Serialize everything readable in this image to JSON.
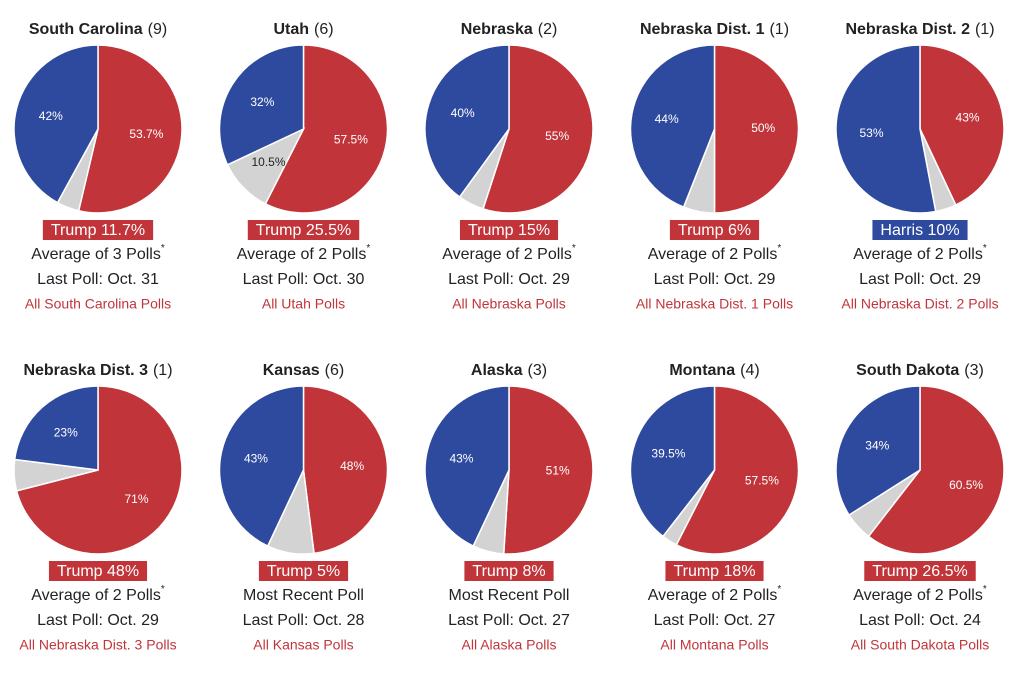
{
  "chart_data": [
    {
      "type": "pie",
      "title": "South Carolina",
      "electoral": "(9)",
      "values": [
        53.7,
        4.3,
        42
      ],
      "value_labels": [
        "53.7%",
        null,
        "42%"
      ],
      "colors": [
        "#c1353a",
        "#d3d3d3",
        "#2e4a9e"
      ],
      "margin": "Trump 11.7%",
      "margin_color": "#c1353a",
      "poll_note": "Average of 3 Polls",
      "footnote_mark": "*",
      "last_poll": "Last Poll: Oct. 31",
      "link": "All South Carolina Polls"
    },
    {
      "type": "pie",
      "title": "Utah",
      "electoral": "(6)",
      "values": [
        57.5,
        10.5,
        32
      ],
      "value_labels": [
        "57.5%",
        "10.5%",
        "32%"
      ],
      "colors": [
        "#c1353a",
        "#d3d3d3",
        "#2e4a9e"
      ],
      "margin": "Trump 25.5%",
      "margin_color": "#c1353a",
      "poll_note": "Average of 2 Polls",
      "footnote_mark": "*",
      "last_poll": "Last Poll: Oct. 30",
      "link": "All Utah Polls"
    },
    {
      "type": "pie",
      "title": "Nebraska",
      "electoral": "(2)",
      "values": [
        55,
        5,
        40
      ],
      "value_labels": [
        "55%",
        null,
        "40%"
      ],
      "colors": [
        "#c1353a",
        "#d3d3d3",
        "#2e4a9e"
      ],
      "margin": "Trump 15%",
      "margin_color": "#c1353a",
      "poll_note": "Average of 2 Polls",
      "footnote_mark": "*",
      "last_poll": "Last Poll: Oct. 29",
      "link": "All Nebraska Polls"
    },
    {
      "type": "pie",
      "title": "Nebraska Dist. 1",
      "electoral": "(1)",
      "values": [
        50,
        6,
        44
      ],
      "value_labels": [
        "50%",
        null,
        "44%"
      ],
      "colors": [
        "#c1353a",
        "#d3d3d3",
        "#2e4a9e"
      ],
      "margin": "Trump 6%",
      "margin_color": "#c1353a",
      "poll_note": "Average of 2 Polls",
      "footnote_mark": "*",
      "last_poll": "Last Poll: Oct. 29",
      "link": "All Nebraska Dist. 1 Polls"
    },
    {
      "type": "pie",
      "title": "Nebraska Dist. 2",
      "electoral": "(1)",
      "values": [
        43,
        4,
        53
      ],
      "value_labels": [
        "43%",
        null,
        "53%"
      ],
      "colors": [
        "#c1353a",
        "#d3d3d3",
        "#2e4a9e"
      ],
      "margin": "Harris 10%",
      "margin_color": "#2e4a9e",
      "poll_note": "Average of 2 Polls",
      "footnote_mark": "*",
      "last_poll": "Last Poll: Oct. 29",
      "link": "All Nebraska Dist. 2 Polls"
    },
    {
      "type": "pie",
      "title": "Nebraska Dist. 3",
      "electoral": "(1)",
      "values": [
        71,
        6,
        23
      ],
      "value_labels": [
        "71%",
        null,
        "23%"
      ],
      "colors": [
        "#c1353a",
        "#d3d3d3",
        "#2e4a9e"
      ],
      "margin": "Trump 48%",
      "margin_color": "#c1353a",
      "poll_note": "Average of 2 Polls",
      "footnote_mark": "*",
      "last_poll": "Last Poll: Oct. 29",
      "link": "All Nebraska Dist. 3 Polls"
    },
    {
      "type": "pie",
      "title": "Kansas",
      "electoral": "(6)",
      "values": [
        48,
        9,
        43
      ],
      "value_labels": [
        "48%",
        null,
        "43%"
      ],
      "colors": [
        "#c1353a",
        "#d3d3d3",
        "#2e4a9e"
      ],
      "margin": "Trump 5%",
      "margin_color": "#c1353a",
      "poll_note": "Most Recent Poll",
      "last_poll": "Last Poll: Oct. 28",
      "link": "All Kansas Polls"
    },
    {
      "type": "pie",
      "title": "Alaska",
      "electoral": "(3)",
      "values": [
        51,
        6,
        43
      ],
      "value_labels": [
        "51%",
        null,
        "43%"
      ],
      "colors": [
        "#c1353a",
        "#d3d3d3",
        "#2e4a9e"
      ],
      "margin": "Trump 8%",
      "margin_color": "#c1353a",
      "poll_note": "Most Recent Poll",
      "last_poll": "Last Poll: Oct. 27",
      "link": "All Alaska Polls"
    },
    {
      "type": "pie",
      "title": "Montana",
      "electoral": "(4)",
      "values": [
        57.5,
        3,
        39.5
      ],
      "value_labels": [
        "57.5%",
        null,
        "39.5%"
      ],
      "colors": [
        "#c1353a",
        "#d3d3d3",
        "#2e4a9e"
      ],
      "margin": "Trump 18%",
      "margin_color": "#c1353a",
      "poll_note": "Average of 2 Polls",
      "footnote_mark": "*",
      "last_poll": "Last Poll: Oct. 27",
      "link": "All Montana Polls"
    },
    {
      "type": "pie",
      "title": "South Dakota",
      "electoral": "(3)",
      "values": [
        60.5,
        5.5,
        34
      ],
      "value_labels": [
        "60.5%",
        null,
        "34%"
      ],
      "colors": [
        "#c1353a",
        "#d3d3d3",
        "#2e4a9e"
      ],
      "margin": "Trump 26.5%",
      "margin_color": "#c1353a",
      "poll_note": "Average of 2 Polls",
      "footnote_mark": "*",
      "last_poll": "Last Poll: Oct. 24",
      "link": "All South Dakota Polls"
    }
  ]
}
